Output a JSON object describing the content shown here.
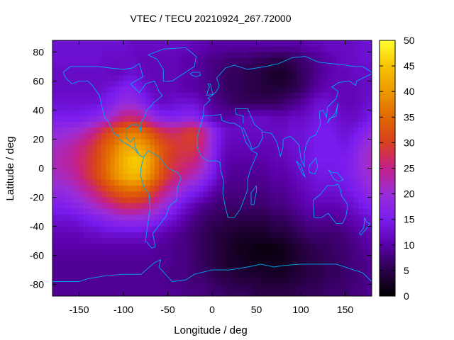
{
  "chart_data": {
    "type": "heatmap",
    "title": "VTEC / TECU 20210924_267.72000",
    "xlabel": "Longitude / deg",
    "ylabel": "Latitude / deg",
    "xlim": [
      -180,
      180
    ],
    "ylim": [
      -88,
      88
    ],
    "x_ticks": [
      -150,
      -100,
      -50,
      0,
      50,
      100,
      150
    ],
    "y_ticks": [
      -80,
      -60,
      -40,
      -20,
      0,
      20,
      40,
      60,
      80
    ],
    "colorbar": {
      "min": 0,
      "max": 50,
      "ticks": [
        0,
        5,
        10,
        15,
        20,
        25,
        30,
        35,
        40,
        45,
        50
      ],
      "palette": [
        "#000000",
        "#2a0048",
        "#5a00a8",
        "#7a1cf0",
        "#9a2ed8",
        "#c4208a",
        "#d84020",
        "#e06800",
        "#ee9800",
        "#f6c400",
        "#ffff30"
      ]
    },
    "grid": false,
    "coastline_color": "#00a8f0",
    "x": [
      -180,
      -170,
      -160,
      -150,
      -140,
      -130,
      -120,
      -110,
      -100,
      -90,
      -80,
      -70,
      -60,
      -50,
      -40,
      -30,
      -20,
      -10,
      0,
      10,
      20,
      30,
      40,
      50,
      60,
      70,
      80,
      90,
      100,
      110,
      120,
      130,
      140,
      150,
      160,
      170,
      180
    ],
    "y": [
      85,
      75,
      65,
      55,
      45,
      35,
      25,
      15,
      5,
      -5,
      -15,
      -25,
      -35,
      -45,
      -55,
      -65,
      -75,
      -85
    ],
    "z": [
      [
        13,
        13,
        13,
        13,
        13,
        13,
        13,
        13,
        13,
        12,
        12,
        12,
        12,
        12,
        12,
        12,
        11,
        11,
        10,
        10,
        10,
        10,
        10,
        10,
        10,
        10,
        10,
        10,
        10,
        11,
        11,
        12,
        12,
        12,
        12,
        13,
        13
      ],
      [
        13,
        13,
        13,
        13,
        13,
        13,
        12,
        12,
        12,
        12,
        11,
        11,
        11,
        11,
        11,
        10,
        10,
        9,
        8,
        8,
        7,
        7,
        7,
        6,
        6,
        5,
        5,
        6,
        7,
        8,
        9,
        10,
        11,
        12,
        12,
        13,
        13
      ],
      [
        12,
        12,
        12,
        12,
        12,
        12,
        12,
        11,
        12,
        13,
        12,
        11,
        11,
        11,
        11,
        10,
        10,
        9,
        8,
        7,
        6,
        6,
        5,
        5,
        4,
        3,
        3,
        4,
        6,
        7,
        9,
        10,
        11,
        11,
        12,
        12,
        12
      ],
      [
        12,
        12,
        12,
        12,
        12,
        12,
        13,
        14,
        16,
        16,
        14,
        12,
        11,
        11,
        11,
        10,
        10,
        9,
        8,
        7,
        6,
        6,
        5,
        5,
        4,
        4,
        4,
        5,
        6,
        8,
        10,
        11,
        11,
        11,
        11,
        12,
        12
      ],
      [
        13,
        13,
        13,
        13,
        13,
        13,
        15,
        17,
        19,
        19,
        17,
        14,
        12,
        12,
        13,
        13,
        13,
        11,
        9,
        8,
        7,
        6,
        6,
        6,
        6,
        6,
        7,
        8,
        9,
        11,
        13,
        13,
        12,
        11,
        11,
        12,
        13
      ],
      [
        15,
        15,
        15,
        15,
        16,
        17,
        19,
        22,
        25,
        26,
        24,
        20,
        17,
        16,
        16,
        17,
        17,
        14,
        11,
        10,
        10,
        11,
        12,
        12,
        12,
        11,
        11,
        12,
        12,
        13,
        14,
        14,
        13,
        12,
        12,
        13,
        15
      ],
      [
        19,
        19,
        20,
        21,
        23,
        26,
        30,
        33,
        36,
        37,
        36,
        33,
        29,
        27,
        27,
        29,
        30,
        25,
        19,
        14,
        12,
        12,
        12,
        12,
        12,
        12,
        12,
        13,
        13,
        14,
        15,
        15,
        14,
        13,
        14,
        16,
        19
      ],
      [
        21,
        22,
        23,
        25,
        27,
        30,
        34,
        37,
        41,
        42,
        41,
        38,
        34,
        31,
        29,
        29,
        29,
        24,
        18,
        13,
        11,
        11,
        11,
        11,
        11,
        11,
        12,
        13,
        13,
        14,
        15,
        15,
        15,
        14,
        16,
        19,
        21
      ],
      [
        22,
        23,
        24,
        26,
        28,
        31,
        35,
        39,
        43,
        46,
        45,
        41,
        35,
        30,
        28,
        27,
        26,
        22,
        17,
        12,
        10,
        10,
        10,
        10,
        10,
        11,
        11,
        12,
        13,
        14,
        15,
        15,
        15,
        15,
        17,
        20,
        22
      ],
      [
        21,
        22,
        23,
        25,
        28,
        31,
        35,
        39,
        42,
        44,
        43,
        39,
        34,
        29,
        26,
        24,
        22,
        19,
        15,
        11,
        9,
        9,
        9,
        9,
        9,
        10,
        10,
        11,
        12,
        13,
        14,
        14,
        14,
        15,
        17,
        19,
        21
      ],
      [
        19,
        19,
        20,
        22,
        24,
        27,
        30,
        33,
        35,
        36,
        35,
        32,
        28,
        24,
        21,
        18,
        16,
        14,
        11,
        9,
        8,
        8,
        8,
        8,
        8,
        9,
        9,
        10,
        11,
        12,
        13,
        13,
        13,
        14,
        15,
        17,
        19
      ],
      [
        16,
        16,
        17,
        18,
        20,
        22,
        24,
        26,
        28,
        28,
        27,
        25,
        22,
        19,
        16,
        13,
        11,
        9,
        8,
        7,
        7,
        7,
        7,
        7,
        7,
        8,
        8,
        9,
        10,
        11,
        11,
        11,
        11,
        12,
        13,
        15,
        16
      ],
      [
        13,
        13,
        13,
        14,
        15,
        16,
        17,
        18,
        19,
        19,
        19,
        18,
        16,
        14,
        12,
        10,
        8,
        7,
        6,
        6,
        5,
        5,
        5,
        5,
        5,
        6,
        6,
        7,
        8,
        9,
        9,
        9,
        9,
        10,
        11,
        12,
        13
      ],
      [
        11,
        11,
        11,
        11,
        12,
        12,
        13,
        13,
        13,
        13,
        13,
        12,
        11,
        10,
        9,
        8,
        7,
        6,
        5,
        4,
        4,
        3,
        3,
        3,
        3,
        4,
        4,
        5,
        6,
        7,
        7,
        7,
        7,
        8,
        9,
        10,
        11
      ],
      [
        10,
        10,
        10,
        10,
        10,
        10,
        10,
        10,
        10,
        10,
        10,
        10,
        9,
        9,
        8,
        8,
        7,
        6,
        5,
        4,
        3,
        2,
        2,
        1,
        1,
        1,
        2,
        3,
        4,
        5,
        6,
        6,
        7,
        7,
        8,
        9,
        10
      ],
      [
        9,
        9,
        9,
        9,
        9,
        9,
        9,
        9,
        9,
        9,
        9,
        9,
        9,
        9,
        8,
        8,
        7,
        6,
        5,
        4,
        3,
        3,
        2,
        2,
        2,
        2,
        2,
        3,
        4,
        5,
        5,
        6,
        6,
        7,
        8,
        8,
        9
      ],
      [
        9,
        9,
        9,
        9,
        9,
        9,
        9,
        9,
        9,
        9,
        9,
        9,
        9,
        8,
        8,
        8,
        7,
        7,
        6,
        5,
        5,
        4,
        4,
        4,
        3,
        3,
        3,
        4,
        4,
        5,
        5,
        6,
        6,
        7,
        7,
        8,
        9
      ],
      [
        9,
        9,
        9,
        9,
        9,
        9,
        9,
        9,
        9,
        9,
        9,
        9,
        9,
        9,
        9,
        8,
        8,
        8,
        7,
        7,
        6,
        6,
        6,
        5,
        5,
        5,
        5,
        5,
        6,
        6,
        6,
        7,
        7,
        7,
        8,
        8,
        9
      ]
    ]
  }
}
